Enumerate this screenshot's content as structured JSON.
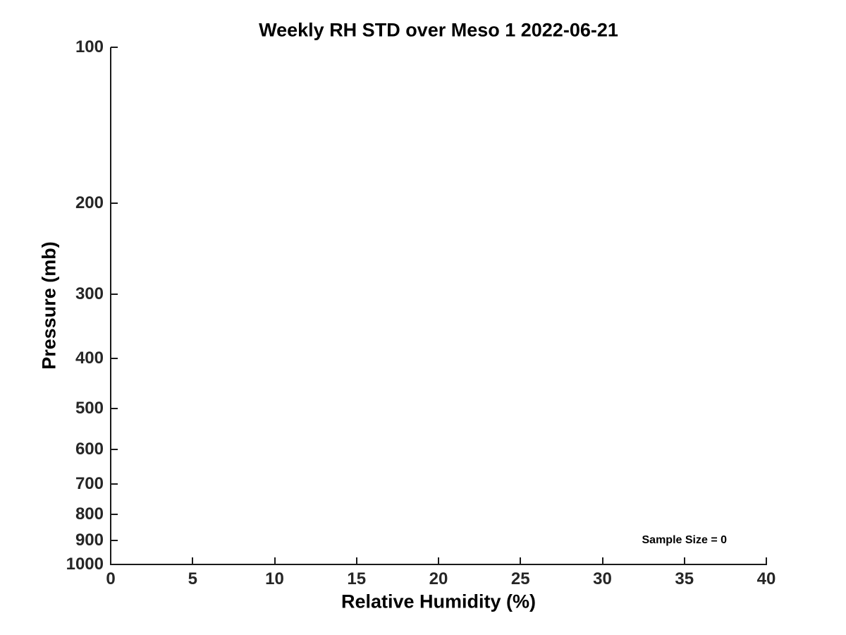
{
  "chart_data": {
    "type": "line",
    "title": "Weekly RH STD over Meso 1 2022-06-21",
    "xlabel": "Relative Humidity (%)",
    "ylabel": "Pressure (mb)",
    "xlim": [
      0,
      40
    ],
    "ylim": [
      100,
      1000
    ],
    "x_scale": "linear",
    "y_scale": "log",
    "y_inverted": true,
    "x_ticks": [
      0,
      5,
      10,
      15,
      20,
      25,
      30,
      35,
      40
    ],
    "y_ticks": [
      100,
      200,
      300,
      400,
      500,
      600,
      700,
      800,
      900,
      1000
    ],
    "grid": false,
    "legend": null,
    "series": [],
    "annotations": [
      {
        "text": "Sample Size = 0",
        "x": 35,
        "y": 900
      }
    ]
  },
  "colors": {
    "background": "#ffffff",
    "axis": "#1a1a1a",
    "tick_label": "#262626",
    "text": "#000000"
  }
}
